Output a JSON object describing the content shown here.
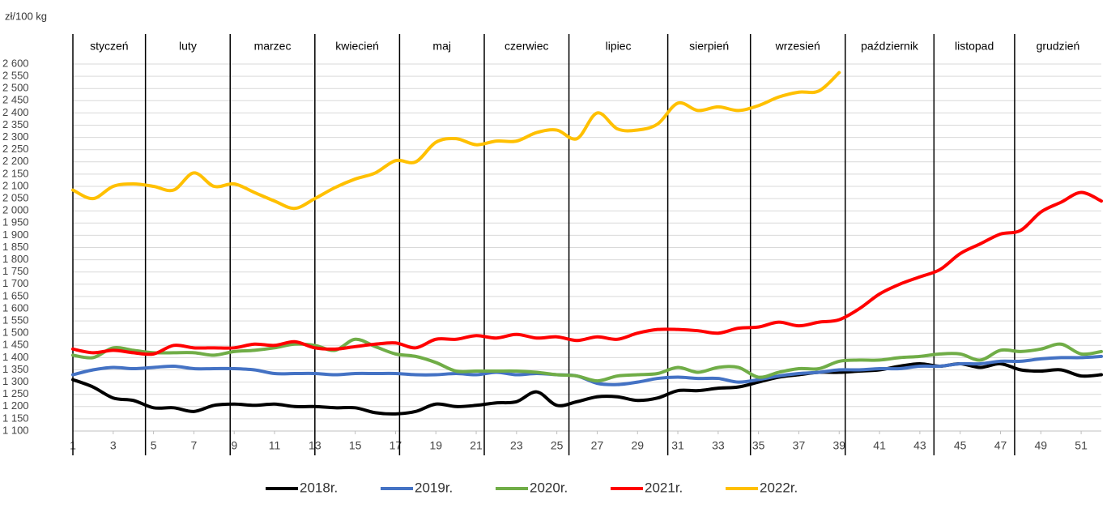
{
  "chart_data": {
    "type": "line",
    "y_label": "zł/100 kg",
    "x": [
      1,
      2,
      3,
      4,
      5,
      6,
      7,
      8,
      9,
      10,
      11,
      12,
      13,
      14,
      15,
      16,
      17,
      18,
      19,
      20,
      21,
      22,
      23,
      24,
      25,
      26,
      27,
      28,
      29,
      30,
      31,
      32,
      33,
      34,
      35,
      36,
      37,
      38,
      39,
      40,
      41,
      42,
      43,
      44,
      45,
      46,
      47,
      48,
      49,
      50,
      51,
      52
    ],
    "xlim": [
      1,
      52
    ],
    "xticks": [
      1,
      3,
      5,
      7,
      9,
      11,
      13,
      15,
      17,
      19,
      21,
      23,
      25,
      27,
      29,
      31,
      33,
      35,
      37,
      39,
      41,
      43,
      45,
      47,
      49,
      51
    ],
    "ylim": [
      1100,
      2600
    ],
    "yticks": [
      {
        "value": 1100,
        "label": "1 100"
      },
      {
        "value": 1150,
        "label": "1 150"
      },
      {
        "value": 1200,
        "label": "1 200"
      },
      {
        "value": 1250,
        "label": "1 250"
      },
      {
        "value": 1300,
        "label": "1 300"
      },
      {
        "value": 1350,
        "label": "1 350"
      },
      {
        "value": 1400,
        "label": "1 400"
      },
      {
        "value": 1450,
        "label": "1 450"
      },
      {
        "value": 1500,
        "label": "1 500"
      },
      {
        "value": 1550,
        "label": "1 550"
      },
      {
        "value": 1600,
        "label": "1 600"
      },
      {
        "value": 1650,
        "label": "1 650"
      },
      {
        "value": 1700,
        "label": "1 700"
      },
      {
        "value": 1750,
        "label": "1 750"
      },
      {
        "value": 1800,
        "label": "1 800"
      },
      {
        "value": 1850,
        "label": "1 850"
      },
      {
        "value": 1900,
        "label": "1 900"
      },
      {
        "value": 1950,
        "label": "1 950"
      },
      {
        "value": 2000,
        "label": "2 000"
      },
      {
        "value": 2050,
        "label": "2 050"
      },
      {
        "value": 2100,
        "label": "2 100"
      },
      {
        "value": 2150,
        "label": "2 150"
      },
      {
        "value": 2200,
        "label": "2 200"
      },
      {
        "value": 2250,
        "label": "2 250"
      },
      {
        "value": 2300,
        "label": "2 300"
      },
      {
        "value": 2350,
        "label": "2 350"
      },
      {
        "value": 2400,
        "label": "2 400"
      },
      {
        "value": 2450,
        "label": "2 450"
      },
      {
        "value": 2500,
        "label": "2 500"
      },
      {
        "value": 2550,
        "label": "2 550"
      },
      {
        "value": 2600,
        "label": "2 600"
      }
    ],
    "grid": true,
    "legend": "bottom",
    "months": [
      "styczeń",
      "luty",
      "marzec",
      "kwiecień",
      "maj",
      "czerwiec",
      "lipiec",
      "sierpień",
      "wrzesień",
      "październik",
      "listopad",
      "grudzień"
    ],
    "month_boundaries": [
      1,
      4.6,
      8.8,
      13,
      17.2,
      21.4,
      25.6,
      30.5,
      34.6,
      39.3,
      43.7,
      47.7
    ],
    "series": [
      {
        "name": "2018r.",
        "color": "#000000",
        "values": [
          1310,
          1280,
          1235,
          1225,
          1195,
          1195,
          1180,
          1205,
          1210,
          1205,
          1210,
          1200,
          1200,
          1195,
          1195,
          1175,
          1170,
          1180,
          1210,
          1200,
          1205,
          1215,
          1220,
          1260,
          1205,
          1220,
          1240,
          1240,
          1225,
          1235,
          1265,
          1265,
          1275,
          1280,
          1300,
          1320,
          1330,
          1340,
          1340,
          1345,
          1350,
          1365,
          1375,
          1365,
          1375,
          1360,
          1375,
          1350,
          1345,
          1350,
          1325,
          1330
        ]
      },
      {
        "name": "2019r.",
        "color": "#4472c4",
        "values": [
          1330,
          1350,
          1360,
          1355,
          1360,
          1365,
          1355,
          1355,
          1355,
          1350,
          1335,
          1335,
          1335,
          1330,
          1335,
          1335,
          1335,
          1330,
          1330,
          1335,
          1330,
          1340,
          1330,
          1335,
          1330,
          1325,
          1295,
          1290,
          1300,
          1315,
          1320,
          1315,
          1315,
          1300,
          1310,
          1325,
          1335,
          1340,
          1350,
          1350,
          1355,
          1355,
          1365,
          1365,
          1375,
          1375,
          1385,
          1385,
          1395,
          1400,
          1400,
          1405
        ]
      },
      {
        "name": "2020r.",
        "color": "#70ad47",
        "values": [
          1410,
          1400,
          1440,
          1430,
          1420,
          1420,
          1420,
          1410,
          1425,
          1430,
          1440,
          1455,
          1450,
          1430,
          1475,
          1445,
          1415,
          1405,
          1380,
          1345,
          1345,
          1345,
          1345,
          1340,
          1330,
          1325,
          1305,
          1325,
          1330,
          1335,
          1360,
          1340,
          1360,
          1360,
          1320,
          1340,
          1355,
          1355,
          1385,
          1390,
          1390,
          1400,
          1405,
          1415,
          1415,
          1390,
          1430,
          1425,
          1435,
          1455,
          1415,
          1425
        ]
      },
      {
        "name": "2021r.",
        "color": "#ff0000",
        "values": [
          1435,
          1420,
          1430,
          1420,
          1415,
          1450,
          1440,
          1440,
          1440,
          1455,
          1450,
          1465,
          1440,
          1435,
          1445,
          1455,
          1460,
          1440,
          1475,
          1475,
          1490,
          1480,
          1495,
          1480,
          1485,
          1470,
          1485,
          1475,
          1500,
          1515,
          1515,
          1510,
          1500,
          1520,
          1525,
          1545,
          1530,
          1545,
          1555,
          1600,
          1660,
          1700,
          1730,
          1760,
          1825,
          1865,
          1905,
          1920,
          1995,
          2035,
          2075,
          2040
        ]
      },
      {
        "name": "2022r.",
        "color": "#ffc000",
        "values": [
          2085,
          2050,
          2100,
          2110,
          2100,
          2085,
          2155,
          2100,
          2110,
          2075,
          2040,
          2010,
          2050,
          2095,
          2130,
          2155,
          2205,
          2200,
          2280,
          2295,
          2270,
          2285,
          2285,
          2320,
          2330,
          2295,
          2400,
          2335,
          2330,
          2355,
          2440,
          2410,
          2425,
          2410,
          2430,
          2465,
          2485,
          2490,
          2565,
          null,
          null,
          null,
          null,
          null,
          null,
          null,
          null,
          null,
          null,
          null,
          null,
          null
        ]
      }
    ]
  }
}
